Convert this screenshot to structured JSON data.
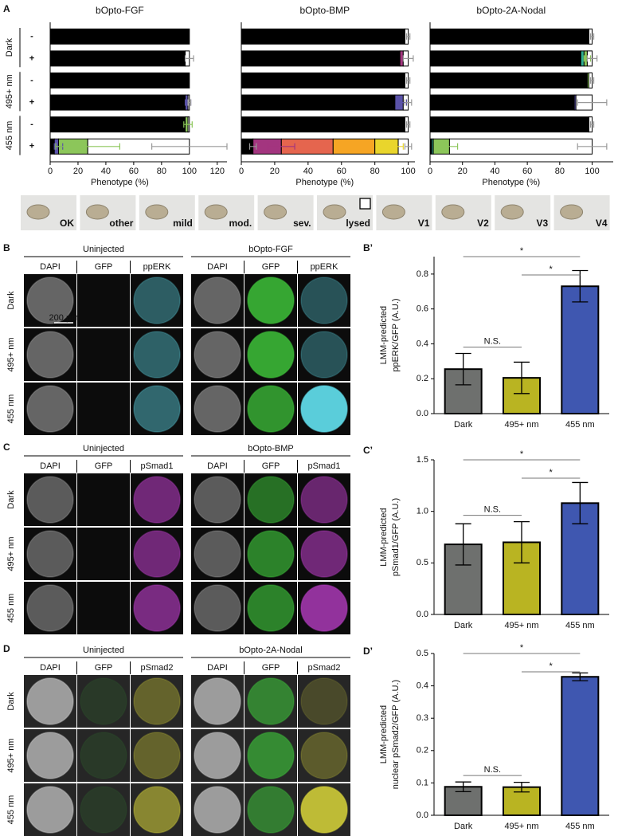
{
  "chart_data": [
    {
      "type": "stacked-barh",
      "panel_label": "A",
      "title": "bOpto-FGF",
      "categories": [
        "-",
        "+",
        "-",
        "+",
        "-",
        "+"
      ],
      "row_groups": [
        {
          "label": "Dark",
          "color": "#000000"
        },
        {
          "label": "495+ nm",
          "color": "#b5b21c"
        },
        {
          "label": "455 nm",
          "color": "#3a4fa8"
        }
      ],
      "xlabel": "Phenotype (%)",
      "xlim": [
        0,
        127
      ],
      "xticks": [
        0,
        20,
        40,
        60,
        80,
        100,
        120
      ],
      "series": [
        {
          "color": "#000000",
          "values": [
            100,
            97,
            100,
            97,
            97,
            3
          ],
          "errors": [
            null,
            null,
            null,
            null,
            null,
            null
          ]
        },
        {
          "color": "#5b2c83",
          "values": [
            0,
            0,
            0,
            0,
            0,
            0
          ],
          "errors": [
            null,
            null,
            null,
            null,
            null,
            null
          ]
        },
        {
          "color": "#5a52a8",
          "values": [
            0,
            0,
            0,
            2,
            0,
            3
          ],
          "errors": [
            null,
            null,
            null,
            2,
            null,
            3
          ]
        },
        {
          "color": "#2fae93",
          "values": [
            0,
            0,
            0,
            0,
            0,
            0
          ],
          "errors": [
            null,
            null,
            null,
            null,
            null,
            null
          ]
        },
        {
          "color": "#8cc65a",
          "values": [
            0,
            0,
            0,
            0,
            2,
            21
          ],
          "errors": [
            null,
            null,
            null,
            null,
            3,
            23
          ]
        },
        {
          "color": "#a3357f",
          "values": [
            0,
            0,
            0,
            0,
            0,
            0
          ],
          "errors": [
            null,
            null,
            null,
            null,
            null,
            null
          ]
        },
        {
          "color": "#e5654e",
          "values": [
            0,
            0,
            0,
            0,
            0,
            0
          ],
          "errors": [
            null,
            null,
            null,
            null,
            null,
            null
          ]
        },
        {
          "color": "#f6a524",
          "values": [
            0,
            0,
            0,
            0,
            0,
            0
          ],
          "errors": [
            null,
            null,
            null,
            null,
            null,
            null
          ]
        },
        {
          "color": "#e9d52c",
          "values": [
            0,
            0,
            0,
            0,
            0,
            0
          ],
          "errors": [
            null,
            null,
            null,
            null,
            null,
            null
          ]
        },
        {
          "color": "#ffffff",
          "values": [
            0,
            3,
            0,
            1,
            1,
            73
          ],
          "errors": [
            null,
            3,
            null,
            1,
            null,
            27
          ]
        }
      ]
    },
    {
      "type": "stacked-barh",
      "title": "bOpto-BMP",
      "xlabel": "Phenotype (%)",
      "xlim": [
        0,
        104
      ],
      "xticks": [
        0,
        20,
        40,
        60,
        80,
        100
      ],
      "series": [
        {
          "color": "#000000",
          "values": [
            98,
            95,
            98,
            92,
            98,
            7
          ],
          "errors": [
            null,
            null,
            null,
            null,
            null,
            2
          ]
        },
        {
          "color": "#5b2c83",
          "values": [
            0,
            0,
            0,
            0,
            0,
            0
          ],
          "errors": [
            null,
            null,
            null,
            null,
            null,
            null
          ]
        },
        {
          "color": "#5a52a8",
          "values": [
            0,
            0,
            0,
            5,
            0,
            0
          ],
          "errors": [
            null,
            null,
            null,
            2,
            null,
            null
          ]
        },
        {
          "color": "#2fae93",
          "values": [
            0,
            0,
            0,
            0,
            0,
            0
          ],
          "errors": [
            null,
            null,
            null,
            null,
            null,
            null
          ]
        },
        {
          "color": "#8cc65a",
          "values": [
            0,
            0,
            0,
            0,
            0,
            0
          ],
          "errors": [
            null,
            null,
            null,
            null,
            null,
            null
          ]
        },
        {
          "color": "#a3357f",
          "values": [
            0,
            2,
            0,
            0,
            0,
            17
          ],
          "errors": [
            null,
            null,
            null,
            null,
            null,
            8
          ]
        },
        {
          "color": "#e5654e",
          "values": [
            0,
            0,
            0,
            0,
            0,
            31
          ],
          "errors": [
            null,
            null,
            null,
            null,
            null,
            null
          ]
        },
        {
          "color": "#f6a524",
          "values": [
            0,
            0,
            0,
            0,
            0,
            25
          ],
          "errors": [
            null,
            null,
            null,
            null,
            null,
            null
          ]
        },
        {
          "color": "#e9d52c",
          "values": [
            0,
            0,
            0,
            0,
            0,
            14
          ],
          "errors": [
            null,
            null,
            null,
            null,
            null,
            3
          ]
        },
        {
          "color": "#ffffff",
          "values": [
            2,
            3,
            2,
            3,
            2,
            6
          ],
          "errors": [
            1,
            3,
            1,
            2,
            1,
            2
          ]
        }
      ]
    },
    {
      "type": "stacked-barh",
      "title": "bOpto-2A-Nodal",
      "xlabel": "Phenotype (%)",
      "xlim": [
        0,
        113
      ],
      "xticks": [
        0,
        20,
        40,
        60,
        80,
        100
      ],
      "series": [
        {
          "color": "#000000",
          "values": [
            98,
            93,
            97,
            89,
            98,
            1
          ],
          "errors": [
            null,
            null,
            null,
            null,
            null,
            null
          ]
        },
        {
          "color": "#5b2c83",
          "values": [
            0,
            0,
            0,
            0,
            0,
            0
          ],
          "errors": [
            null,
            null,
            null,
            null,
            null,
            null
          ]
        },
        {
          "color": "#5a52a8",
          "values": [
            0,
            0,
            0,
            1,
            0,
            0
          ],
          "errors": [
            null,
            null,
            null,
            null,
            null,
            null
          ]
        },
        {
          "color": "#2fae93",
          "values": [
            0,
            2,
            0,
            0,
            0,
            1
          ],
          "errors": [
            null,
            null,
            null,
            null,
            null,
            null
          ]
        },
        {
          "color": "#8cc65a",
          "values": [
            0,
            2,
            1,
            0,
            0,
            10
          ],
          "errors": [
            null,
            2,
            null,
            null,
            null,
            5
          ]
        },
        {
          "color": "#a3357f",
          "values": [
            0,
            0,
            0,
            0,
            0,
            0
          ],
          "errors": [
            null,
            null,
            null,
            null,
            null,
            null
          ]
        },
        {
          "color": "#e5654e",
          "values": [
            0,
            0,
            0,
            0,
            0,
            0
          ],
          "errors": [
            null,
            null,
            null,
            null,
            null,
            null
          ]
        },
        {
          "color": "#f6a524",
          "values": [
            0,
            0,
            0,
            0,
            0,
            0
          ],
          "errors": [
            null,
            null,
            null,
            null,
            null,
            null
          ]
        },
        {
          "color": "#e9d52c",
          "values": [
            0,
            0,
            0,
            0,
            0,
            0
          ],
          "errors": [
            null,
            null,
            null,
            null,
            null,
            null
          ]
        },
        {
          "color": "#ffffff",
          "values": [
            2,
            3,
            2,
            10,
            2,
            88
          ],
          "errors": [
            1,
            3,
            1,
            9,
            1,
            9
          ]
        }
      ]
    },
    {
      "type": "bar",
      "panel_label": "B’",
      "ylabel": [
        "LMM-predicted",
        "ppERK/GFP (A.U.)"
      ],
      "categories": [
        "Dark",
        "495+ nm",
        "455 nm"
      ],
      "values": [
        0.255,
        0.205,
        0.73
      ],
      "errors": [
        0.09,
        0.09,
        0.09
      ],
      "colors": [
        "#6e706e",
        "#b9b422",
        "#3f57b0"
      ],
      "annotations": [
        "*",
        "*",
        "N.S."
      ],
      "ylim": [
        0,
        0.9
      ],
      "yticks": [
        {
          "value": 0,
          "label": "0.0"
        },
        0.2,
        0.4,
        0.6,
        0.8
      ]
    },
    {
      "type": "bar",
      "panel_label": "C’",
      "ylabel": [
        "LMM-predicted",
        "pSmad1/GFP (A.U.)"
      ],
      "categories": [
        "Dark",
        "495+ nm",
        "455 nm"
      ],
      "values": [
        0.68,
        0.7,
        1.08
      ],
      "errors": [
        0.2,
        0.2,
        0.2
      ],
      "colors": [
        "#6e706e",
        "#b9b422",
        "#3f57b0"
      ],
      "annotations": [
        "*",
        "*",
        "N.S."
      ],
      "ylim": [
        0,
        1.5
      ],
      "yticks": [
        {
          "value": 0,
          "label": "0.0"
        },
        0.5,
        {
          "value": 1,
          "label": "1.0"
        },
        1.5
      ]
    },
    {
      "type": "bar",
      "panel_label": "D’",
      "ylabel": [
        "LMM-predicted",
        "nuclear pSmad2/GFP (A.U.)"
      ],
      "categories": [
        "Dark",
        "495+ nm",
        "455 nm"
      ],
      "values": [
        0.088,
        0.087,
        0.428
      ],
      "errors": [
        0.015,
        0.015,
        0.012
      ],
      "colors": [
        "#6e706e",
        "#b9b422",
        "#3f57b0"
      ],
      "annotations": [
        "*",
        "*",
        "N.S."
      ],
      "ylim": [
        0,
        0.5
      ],
      "yticks": [
        {
          "value": 0,
          "label": "0.0"
        },
        0.1,
        0.2,
        0.3,
        0.4,
        0.5
      ]
    }
  ],
  "phenotype_key": [
    {
      "label": "OK",
      "color": "#000000"
    },
    {
      "label": "other",
      "color": "#5b2c83"
    },
    {
      "label": "mild",
      "color": "#5a52a8"
    },
    {
      "label": "mod.",
      "color": "#2fae93"
    },
    {
      "label": "sev.",
      "color": "#8cc65a"
    },
    {
      "label": "lysed",
      "color": "#000000",
      "swatch": "#ffffff"
    },
    {
      "label": "V1",
      "color": "#a3357f"
    },
    {
      "label": "V2",
      "color": "#e5654e"
    },
    {
      "label": "V3",
      "color": "#f6a524"
    },
    {
      "label": "V4",
      "color": "#e9d52c"
    }
  ],
  "micrographs": [
    {
      "panel_label": "B",
      "scale_bar": "200 µm",
      "groups": [
        {
          "title": "Uninjected",
          "channels": [
            "DAPI",
            "GFP",
            "ppERK"
          ]
        },
        {
          "title": "bOpto-FGF",
          "channels": [
            "DAPI",
            "GFP",
            "ppERK"
          ]
        }
      ],
      "rows": [
        {
          "label": "Dark",
          "color": "#000000"
        },
        {
          "label": "495+ nm",
          "color": "#b5b21c"
        },
        {
          "label": "455 nm",
          "color": "#3a4fa8"
        }
      ]
    },
    {
      "panel_label": "C",
      "groups": [
        {
          "title": "Uninjected",
          "channels": [
            "DAPI",
            "GFP",
            "pSmad1"
          ]
        },
        {
          "title": "bOpto-BMP",
          "channels": [
            "DAPI",
            "GFP",
            "pSmad1"
          ]
        }
      ],
      "rows": [
        {
          "label": "Dark",
          "color": "#000000"
        },
        {
          "label": "495+ nm",
          "color": "#b5b21c"
        },
        {
          "label": "455 nm",
          "color": "#3a4fa8"
        }
      ]
    },
    {
      "panel_label": "D",
      "groups": [
        {
          "title": "Uninjected",
          "channels": [
            "DAPI",
            "GFP",
            "pSmad2"
          ]
        },
        {
          "title": "bOpto-2A-Nodal",
          "channels": [
            "DAPI",
            "GFP",
            "pSmad2"
          ]
        }
      ],
      "rows": [
        {
          "label": "Dark",
          "color": "#000000"
        },
        {
          "label": "495+ nm",
          "color": "#b5b21c"
        },
        {
          "label": "455 nm",
          "color": "#3a4fa8"
        }
      ]
    }
  ]
}
